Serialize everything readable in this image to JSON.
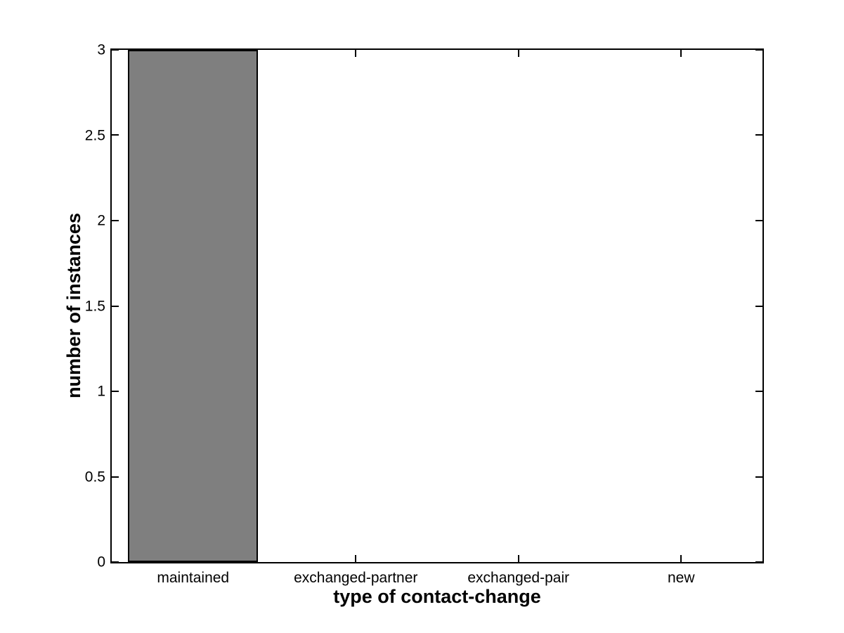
{
  "chart_data": {
    "type": "bar",
    "title": "",
    "xlabel": "type of contact-change",
    "ylabel": "number of instances",
    "categories": [
      "maintained",
      "exchanged-partner",
      "exchanged-pair",
      "new"
    ],
    "values": [
      3,
      0,
      0,
      0
    ],
    "ylim": [
      0,
      3
    ],
    "yticks": [
      0,
      0.5,
      1,
      1.5,
      2,
      2.5,
      3
    ],
    "ytick_labels": [
      "0",
      "0.5",
      "1",
      "1.5",
      "2",
      "2.5",
      "3"
    ],
    "bar_width_fraction": 0.8,
    "bar_color": "#7f7f7f",
    "bar_edge_color": "#000000",
    "axis_color": "#000000",
    "background_color": "#ffffff",
    "grid": false,
    "legend": null,
    "box": true,
    "tick_direction": "in"
  }
}
